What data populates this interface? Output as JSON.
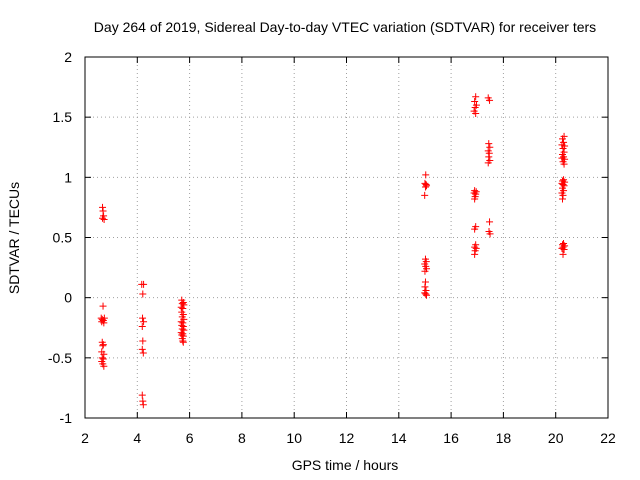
{
  "chart_data": {
    "type": "scatter",
    "title": "Day 264 of 2019, Sidereal Day-to-day VTEC variation (SDTVAR) for receiver ters",
    "xlabel": "GPS time / hours",
    "ylabel": "SDTVAR / TECUs",
    "xlim": [
      2,
      22
    ],
    "ylim": [
      -1,
      2
    ],
    "xticks": [
      2,
      4,
      6,
      8,
      10,
      12,
      14,
      16,
      18,
      20,
      22
    ],
    "yticks": [
      -1,
      -0.5,
      0,
      0.5,
      1,
      1.5,
      2
    ],
    "xtick_labels": [
      "2",
      "4",
      "6",
      "8",
      "10",
      "12",
      "14",
      "16",
      "18",
      "20",
      "22"
    ],
    "ytick_labels": [
      "-1",
      "-0.5",
      "0",
      "0.5",
      "1",
      "1.5",
      "2"
    ],
    "grid": true,
    "marker": "+",
    "color": "#ff0000",
    "series": [
      {
        "name": "SDTVAR",
        "points": [
          [
            2.67,
            0.75
          ],
          [
            2.69,
            0.72
          ],
          [
            2.71,
            0.68
          ],
          [
            2.67,
            0.66
          ],
          [
            2.73,
            0.65
          ],
          [
            2.69,
            -0.07
          ],
          [
            2.62,
            -0.17
          ],
          [
            2.66,
            -0.18
          ],
          [
            2.7,
            -0.19
          ],
          [
            2.74,
            -0.17
          ],
          [
            2.64,
            -0.2
          ],
          [
            2.72,
            -0.21
          ],
          [
            2.66,
            -0.37
          ],
          [
            2.7,
            -0.39
          ],
          [
            2.68,
            -0.4
          ],
          [
            2.64,
            -0.45
          ],
          [
            2.72,
            -0.47
          ],
          [
            2.66,
            -0.5
          ],
          [
            2.7,
            -0.51
          ],
          [
            2.64,
            -0.53
          ],
          [
            2.68,
            -0.55
          ],
          [
            2.72,
            -0.57
          ],
          [
            4.17,
            0.11
          ],
          [
            4.24,
            0.11
          ],
          [
            4.21,
            0.03
          ],
          [
            4.2,
            -0.17
          ],
          [
            4.24,
            -0.2
          ],
          [
            4.19,
            -0.24
          ],
          [
            4.21,
            -0.36
          ],
          [
            4.19,
            -0.43
          ],
          [
            4.23,
            -0.46
          ],
          [
            4.19,
            -0.81
          ],
          [
            4.21,
            -0.86
          ],
          [
            4.23,
            -0.89
          ],
          [
            5.7,
            -0.02
          ],
          [
            5.76,
            -0.04
          ],
          [
            5.72,
            -0.05
          ],
          [
            5.78,
            -0.06
          ],
          [
            5.68,
            -0.08
          ],
          [
            5.74,
            -0.09
          ],
          [
            5.7,
            -0.12
          ],
          [
            5.76,
            -0.14
          ],
          [
            5.72,
            -0.16
          ],
          [
            5.78,
            -0.18
          ],
          [
            5.68,
            -0.2
          ],
          [
            5.74,
            -0.21
          ],
          [
            5.7,
            -0.23
          ],
          [
            5.76,
            -0.24
          ],
          [
            5.72,
            -0.26
          ],
          [
            5.78,
            -0.27
          ],
          [
            5.68,
            -0.29
          ],
          [
            5.74,
            -0.3
          ],
          [
            5.7,
            -0.31
          ],
          [
            5.76,
            -0.32
          ],
          [
            5.72,
            -0.34
          ],
          [
            5.74,
            -0.36
          ],
          [
            5.76,
            -0.37
          ],
          [
            15.03,
            1.02
          ],
          [
            15.0,
            0.95
          ],
          [
            15.04,
            0.94
          ],
          [
            15.02,
            0.92
          ],
          [
            15.06,
            0.93
          ],
          [
            14.99,
            0.85
          ],
          [
            15.02,
            0.32
          ],
          [
            15.05,
            0.3
          ],
          [
            14.99,
            0.28
          ],
          [
            15.03,
            0.26
          ],
          [
            15.06,
            0.24
          ],
          [
            15.0,
            0.22
          ],
          [
            15.02,
            0.13
          ],
          [
            15.0,
            0.09
          ],
          [
            15.04,
            0.06
          ],
          [
            14.99,
            0.04
          ],
          [
            15.03,
            0.03
          ],
          [
            15.06,
            0.02
          ],
          [
            16.94,
            1.67
          ],
          [
            16.9,
            1.63
          ],
          [
            16.97,
            1.6
          ],
          [
            16.92,
            1.58
          ],
          [
            16.88,
            1.55
          ],
          [
            16.94,
            1.53
          ],
          [
            16.9,
            0.89
          ],
          [
            16.96,
            0.88
          ],
          [
            16.88,
            0.87
          ],
          [
            16.94,
            0.86
          ],
          [
            16.92,
            0.84
          ],
          [
            16.9,
            0.82
          ],
          [
            16.94,
            0.59
          ],
          [
            16.9,
            0.57
          ],
          [
            16.94,
            0.44
          ],
          [
            16.9,
            0.42
          ],
          [
            16.96,
            0.41
          ],
          [
            16.92,
            0.39
          ],
          [
            16.9,
            0.36
          ],
          [
            17.42,
            1.66
          ],
          [
            17.47,
            1.64
          ],
          [
            17.44,
            1.28
          ],
          [
            17.48,
            1.25
          ],
          [
            17.42,
            1.22
          ],
          [
            17.46,
            1.2
          ],
          [
            17.44,
            1.17
          ],
          [
            17.48,
            1.14
          ],
          [
            17.42,
            1.12
          ],
          [
            17.47,
            0.63
          ],
          [
            17.45,
            0.55
          ],
          [
            17.49,
            0.53
          ],
          [
            20.32,
            1.34
          ],
          [
            20.26,
            1.32
          ],
          [
            20.3,
            1.29
          ],
          [
            20.24,
            1.27
          ],
          [
            20.34,
            1.26
          ],
          [
            20.28,
            1.24
          ],
          [
            20.32,
            1.21
          ],
          [
            20.26,
            1.19
          ],
          [
            20.3,
            1.17
          ],
          [
            20.24,
            1.16
          ],
          [
            20.34,
            1.15
          ],
          [
            20.28,
            1.13
          ],
          [
            20.32,
            1.11
          ],
          [
            20.3,
            0.98
          ],
          [
            20.26,
            0.97
          ],
          [
            20.34,
            0.96
          ],
          [
            20.24,
            0.95
          ],
          [
            20.28,
            0.94
          ],
          [
            20.32,
            0.93
          ],
          [
            20.26,
            0.91
          ],
          [
            20.3,
            0.89
          ],
          [
            20.24,
            0.87
          ],
          [
            20.28,
            0.85
          ],
          [
            20.26,
            0.82
          ],
          [
            20.3,
            0.45
          ],
          [
            20.26,
            0.44
          ],
          [
            20.34,
            0.43
          ],
          [
            20.28,
            0.42
          ],
          [
            20.24,
            0.41
          ],
          [
            20.32,
            0.4
          ],
          [
            20.28,
            0.36
          ]
        ]
      }
    ]
  }
}
